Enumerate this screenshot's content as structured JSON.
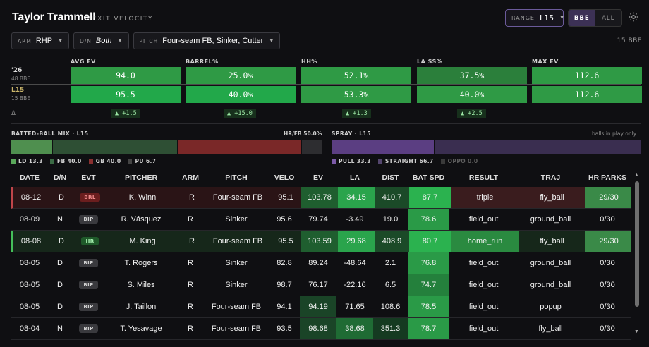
{
  "header": {
    "player": "Taylor Trammell",
    "subtitle": "EXIT VELOCITY",
    "range_key": "RANGE",
    "range_value": "L15",
    "seg_options": [
      "BBE",
      "ALL"
    ],
    "seg_selected": "BBE",
    "gear_icon": "gear-icon"
  },
  "filters": {
    "arm": {
      "key": "ARM",
      "value": "RHP"
    },
    "dn": {
      "key": "D/N",
      "value": "Both"
    },
    "pitch": {
      "key": "PITCH",
      "value": "Four-seam FB, Sinker, Cutter"
    },
    "bbe_count": "15 BBE"
  },
  "metrics": {
    "rows": [
      {
        "label": "'26",
        "sub": "48 BBE"
      },
      {
        "label": "L15",
        "sub": "15 BBE"
      }
    ],
    "delta_symbol": "Δ",
    "cols": [
      {
        "name": "AVG EV",
        "season": "94.0",
        "l15": "95.5",
        "delta": "▲ +1.5"
      },
      {
        "name": "BARREL%",
        "season": "25.0%",
        "l15": "40.0%",
        "delta": "▲ +15.0"
      },
      {
        "name": "HH%",
        "season": "52.1%",
        "l15": "53.3%",
        "delta": "▲ +1.3"
      },
      {
        "name": "LA SS%",
        "season": "37.5%",
        "l15": "40.0%",
        "delta": "▲ +2.5"
      },
      {
        "name": "MAX EV",
        "season": "112.6",
        "l15": "112.6",
        "delta": ""
      }
    ]
  },
  "batted_ball": {
    "label": "BATTED-BALL MIX · L15",
    "hrfb": "HR/FB 50.0%",
    "segments": [
      {
        "name": "LD",
        "value": 13.3,
        "legend": "LD 13.3",
        "color": "#4f8f4f"
      },
      {
        "name": "FB",
        "value": 40.0,
        "legend": "FB 40.0",
        "color": "#2e4f34"
      },
      {
        "name": "GB",
        "value": 40.0,
        "legend": "GB 40.0",
        "color": "#7a2828"
      },
      {
        "name": "PU",
        "value": 6.7,
        "legend": "PU 6.7",
        "color": "#2d2d30"
      }
    ]
  },
  "spray": {
    "label": "SPRAY · L15",
    "note": "balls in play only",
    "segments": [
      {
        "name": "PULL",
        "value": 33.3,
        "legend": "PULL 33.3",
        "color": "#5b3e82"
      },
      {
        "name": "STRAIGHT",
        "value": 66.7,
        "legend": "STRAIGHT 66.7",
        "color": "#3a2e50"
      },
      {
        "name": "OPPO",
        "value": 0.0,
        "legend": "OPPO 0.0",
        "color": "#4a4a4a"
      }
    ]
  },
  "table": {
    "columns": [
      "DATE",
      "D/N",
      "EVT",
      "PITCHER",
      "ARM",
      "PITCH",
      "VELO",
      "EV",
      "LA",
      "DIST",
      "BAT SPD",
      "RESULT",
      "TRAJ",
      "HR PARKS"
    ],
    "rows": [
      {
        "date": "08-12",
        "dn": "D",
        "evt": "BRL",
        "pitcher": "K. Winn",
        "arm": "R",
        "pitch": "Four-seam FB",
        "velo": "95.1",
        "ev": "103.78",
        "la": "34.15",
        "dist": "410.7",
        "bat": "87.7",
        "result": "triple",
        "traj": "fly_ball",
        "parks": "29/30"
      },
      {
        "date": "08-09",
        "dn": "N",
        "evt": "BIP",
        "pitcher": "R. Vásquez",
        "arm": "R",
        "pitch": "Sinker",
        "velo": "95.6",
        "ev": "79.74",
        "la": "-3.49",
        "dist": "19.0",
        "bat": "78.6",
        "result": "field_out",
        "traj": "ground_ball",
        "parks": "0/30"
      },
      {
        "date": "08-08",
        "dn": "D",
        "evt": "HR",
        "pitcher": "M. King",
        "arm": "R",
        "pitch": "Four-seam FB",
        "velo": "95.5",
        "ev": "103.59",
        "la": "29.68",
        "dist": "408.9",
        "bat": "80.7",
        "result": "home_run",
        "traj": "fly_ball",
        "parks": "29/30"
      },
      {
        "date": "08-05",
        "dn": "D",
        "evt": "BIP",
        "pitcher": "T. Rogers",
        "arm": "R",
        "pitch": "Sinker",
        "velo": "82.8",
        "ev": "89.24",
        "la": "-48.64",
        "dist": "2.1",
        "bat": "76.8",
        "result": "field_out",
        "traj": "ground_ball",
        "parks": "0/30"
      },
      {
        "date": "08-05",
        "dn": "D",
        "evt": "BIP",
        "pitcher": "S. Miles",
        "arm": "R",
        "pitch": "Sinker",
        "velo": "98.7",
        "ev": "76.17",
        "la": "-22.16",
        "dist": "6.5",
        "bat": "74.7",
        "result": "field_out",
        "traj": "ground_ball",
        "parks": "0/30"
      },
      {
        "date": "08-05",
        "dn": "D",
        "evt": "BIP",
        "pitcher": "J. Taillon",
        "arm": "R",
        "pitch": "Four-seam FB",
        "velo": "94.1",
        "ev": "94.19",
        "la": "71.65",
        "dist": "108.6",
        "bat": "78.5",
        "result": "field_out",
        "traj": "popup",
        "parks": "0/30"
      },
      {
        "date": "08-04",
        "dn": "N",
        "evt": "BIP",
        "pitcher": "T. Yesavage",
        "arm": "R",
        "pitch": "Four-seam FB",
        "velo": "93.5",
        "ev": "98.68",
        "la": "38.68",
        "dist": "351.3",
        "bat": "78.7",
        "result": "field_out",
        "traj": "fly_ball",
        "parks": "0/30"
      }
    ]
  }
}
